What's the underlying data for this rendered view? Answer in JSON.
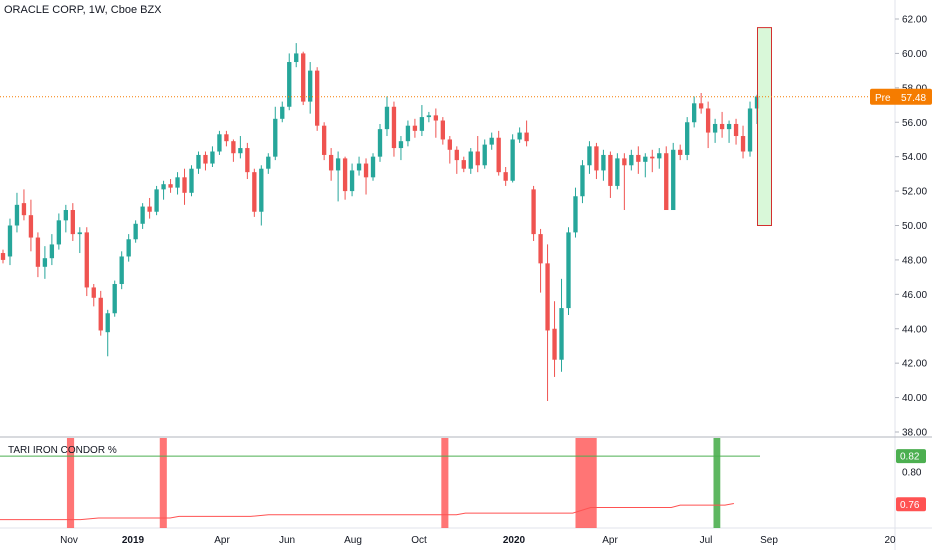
{
  "header": {
    "title": "ORACLE CORP, 1W, Cboe BZX"
  },
  "indicator": {
    "title": "TARI IRON CONDOR %"
  },
  "colors": {
    "up": "#26a69a",
    "down": "#ef5350",
    "highlight_fill": "#ccf5cc",
    "highlight_border": "#d32f2f",
    "ind_green": "#4caf50",
    "ind_red": "#ff5252"
  },
  "chart_data": [
    {
      "type": "candlestick",
      "title": "ORACLE CORP, 1W, Cboe BZX",
      "ylim": [
        37.5,
        62.5
      ],
      "y_ticks": [
        "38.00",
        "40.00",
        "42.00",
        "44.00",
        "46.00",
        "48.00",
        "50.00",
        "52.00",
        "54.00",
        "56.00",
        "58.00",
        "60.00",
        "62.00"
      ],
      "x_ticks": [
        "Nov",
        "2019",
        "Apr",
        "Jun",
        "Aug",
        "Oct",
        "2020",
        "Apr",
        "Jul",
        "Sep",
        "20"
      ],
      "last_price": {
        "label": "Pre",
        "value": "57.48",
        "y": 57.48
      },
      "highlight_box": {
        "low": 50.0,
        "high": 61.5
      },
      "candles": [
        [
          48.4,
          48.6,
          47.8,
          48.0
        ],
        [
          48.2,
          50.4,
          47.7,
          50.0
        ],
        [
          50.0,
          51.9,
          49.6,
          51.2
        ],
        [
          51.3,
          52.1,
          50.3,
          50.6
        ],
        [
          50.6,
          51.5,
          48.5,
          49.3
        ],
        [
          49.3,
          49.6,
          47.0,
          47.6
        ],
        [
          47.6,
          48.8,
          46.9,
          48.1
        ],
        [
          48.1,
          49.5,
          47.7,
          48.9
        ],
        [
          48.9,
          50.7,
          48.6,
          50.3
        ],
        [
          50.3,
          51.2,
          49.6,
          50.9
        ],
        [
          50.9,
          51.3,
          49.1,
          49.5
        ],
        [
          49.5,
          49.9,
          48.4,
          49.6
        ],
        [
          49.6,
          49.9,
          45.9,
          46.4
        ],
        [
          46.4,
          46.6,
          45.3,
          45.8
        ],
        [
          45.8,
          46.2,
          43.6,
          43.9
        ],
        [
          43.8,
          45.1,
          42.4,
          44.9
        ],
        [
          44.9,
          46.8,
          44.7,
          46.6
        ],
        [
          46.6,
          48.5,
          46.3,
          48.2
        ],
        [
          48.2,
          49.5,
          47.9,
          49.2
        ],
        [
          49.2,
          50.3,
          49.0,
          50.1
        ],
        [
          50.1,
          51.3,
          49.8,
          51.1
        ],
        [
          51.1,
          51.6,
          50.4,
          50.8
        ],
        [
          50.8,
          52.3,
          50.6,
          52.1
        ],
        [
          52.1,
          52.6,
          51.5,
          52.4
        ],
        [
          52.4,
          52.7,
          51.9,
          52.2
        ],
        [
          52.2,
          53.1,
          51.8,
          52.8
        ],
        [
          52.8,
          53.3,
          51.2,
          51.9
        ],
        [
          51.9,
          53.5,
          51.7,
          53.3
        ],
        [
          53.3,
          54.3,
          53.0,
          54.1
        ],
        [
          54.1,
          54.3,
          53.2,
          53.6
        ],
        [
          53.6,
          54.6,
          53.4,
          54.3
        ],
        [
          54.3,
          55.5,
          54.1,
          55.3
        ],
        [
          55.3,
          55.5,
          54.6,
          54.9
        ],
        [
          54.9,
          55.0,
          53.7,
          54.2
        ],
        [
          54.2,
          55.2,
          53.9,
          54.5
        ],
        [
          54.5,
          54.8,
          52.7,
          53.1
        ],
        [
          53.1,
          53.3,
          50.5,
          50.8
        ],
        [
          50.8,
          53.5,
          50.0,
          53.3
        ],
        [
          53.3,
          54.2,
          53.0,
          54.0
        ],
        [
          54.0,
          56.9,
          53.8,
          56.2
        ],
        [
          56.2,
          57.2,
          56.0,
          56.9
        ],
        [
          56.9,
          60.0,
          56.7,
          59.5
        ],
        [
          59.5,
          60.6,
          59.2,
          60.0
        ],
        [
          60.0,
          60.1,
          57.0,
          57.2
        ],
        [
          57.2,
          59.5,
          56.5,
          59.0
        ],
        [
          59.0,
          59.2,
          55.5,
          55.8
        ],
        [
          55.8,
          56.0,
          53.8,
          54.1
        ],
        [
          54.1,
          54.5,
          52.6,
          53.2
        ],
        [
          53.2,
          54.3,
          51.4,
          53.9
        ],
        [
          53.9,
          54.0,
          51.5,
          52.0
        ],
        [
          52.0,
          53.6,
          51.7,
          53.2
        ],
        [
          53.2,
          54.0,
          52.9,
          53.6
        ],
        [
          53.6,
          53.9,
          51.8,
          52.8
        ],
        [
          52.8,
          54.2,
          52.6,
          54.0
        ],
        [
          54.0,
          55.9,
          53.7,
          55.6
        ],
        [
          55.6,
          57.5,
          55.2,
          56.9
        ],
        [
          56.9,
          57.2,
          54.0,
          54.5
        ],
        [
          54.5,
          55.2,
          53.8,
          54.9
        ],
        [
          54.9,
          56.1,
          54.6,
          55.8
        ],
        [
          55.8,
          56.2,
          55.1,
          55.5
        ],
        [
          55.5,
          57.0,
          55.2,
          56.3
        ],
        [
          56.3,
          56.6,
          56.0,
          56.4
        ],
        [
          56.4,
          56.8,
          55.1,
          56.1
        ],
        [
          56.1,
          56.3,
          54.7,
          55.0
        ],
        [
          55.0,
          55.2,
          53.6,
          54.4
        ],
        [
          54.4,
          54.6,
          53.0,
          53.8
        ],
        [
          53.8,
          54.0,
          53.1,
          53.3
        ],
        [
          53.3,
          54.5,
          53.0,
          54.3
        ],
        [
          54.3,
          55.2,
          53.1,
          53.5
        ],
        [
          53.5,
          55.0,
          53.3,
          54.7
        ],
        [
          54.7,
          55.4,
          54.4,
          55.1
        ],
        [
          55.1,
          55.5,
          52.9,
          53.1
        ],
        [
          53.1,
          53.4,
          52.3,
          52.6
        ],
        [
          52.6,
          55.3,
          52.5,
          55.0
        ],
        [
          55.0,
          55.7,
          54.8,
          55.4
        ],
        [
          55.4,
          56.1,
          54.6,
          54.9
        ],
        [
          52.1,
          52.3,
          49.1,
          49.5
        ],
        [
          49.5,
          49.8,
          46.1,
          47.8
        ],
        [
          47.8,
          48.9,
          39.8,
          43.9
        ],
        [
          44.0,
          45.6,
          41.2,
          42.2
        ],
        [
          42.2,
          46.9,
          41.5,
          45.2
        ],
        [
          45.2,
          49.9,
          44.8,
          49.6
        ],
        [
          49.6,
          52.2,
          49.3,
          51.7
        ],
        [
          51.7,
          53.8,
          51.3,
          53.5
        ],
        [
          53.5,
          54.9,
          53.0,
          54.6
        ],
        [
          54.6,
          54.8,
          52.7,
          53.2
        ],
        [
          53.2,
          54.4,
          52.6,
          54.1
        ],
        [
          54.1,
          54.3,
          51.6,
          52.3
        ],
        [
          52.3,
          54.2,
          52.1,
          53.9
        ],
        [
          53.9,
          54.2,
          50.9,
          53.5
        ],
        [
          53.5,
          54.4,
          53.2,
          54.1
        ],
        [
          54.1,
          54.6,
          53.0,
          53.7
        ],
        [
          53.7,
          54.2,
          52.8,
          54.0
        ],
        [
          54.0,
          54.4,
          53.1,
          53.9
        ],
        [
          53.9,
          54.5,
          53.3,
          54.2
        ],
        [
          54.2,
          54.6,
          50.9,
          50.9
        ],
        [
          50.9,
          54.8,
          50.9,
          54.4
        ],
        [
          54.4,
          54.7,
          53.8,
          54.1
        ],
        [
          54.1,
          56.3,
          53.8,
          56.0
        ],
        [
          56.0,
          57.5,
          55.7,
          57.1
        ],
        [
          57.1,
          57.7,
          56.5,
          56.8
        ],
        [
          56.8,
          57.2,
          54.5,
          55.4
        ],
        [
          55.4,
          56.2,
          54.8,
          55.9
        ],
        [
          55.9,
          56.6,
          55.1,
          55.6
        ],
        [
          55.6,
          56.1,
          54.8,
          55.9
        ],
        [
          55.9,
          56.2,
          54.7,
          55.2
        ],
        [
          55.2,
          55.8,
          53.9,
          54.3
        ],
        [
          54.3,
          57.2,
          54.0,
          56.8
        ],
        [
          56.8,
          57.6,
          55.9,
          57.5
        ]
      ]
    },
    {
      "type": "line",
      "title": "TARI IRON CONDOR %",
      "ylim": [
        0.733,
        0.84
      ],
      "y_ticks": [
        "0.80"
      ],
      "markers": [
        {
          "label": "0.82",
          "y": 0.82,
          "color": "#4caf50"
        },
        {
          "label": "0.76",
          "y": 0.76,
          "color": "#ff5252"
        }
      ],
      "reference_line": 0.82,
      "series": [
        {
          "values": [
            [
              0,
              0.741
            ],
            [
              0.09,
              0.741
            ],
            [
              0.11,
              0.743
            ],
            [
              0.19,
              0.743
            ],
            [
              0.2,
              0.745
            ],
            [
              0.28,
              0.745
            ],
            [
              0.3,
              0.747
            ],
            [
              0.51,
              0.747
            ],
            [
              0.52,
              0.749
            ],
            [
              0.64,
              0.749
            ],
            [
              0.66,
              0.756
            ],
            [
              0.75,
              0.756
            ],
            [
              0.76,
              0.759
            ],
            [
              0.81,
              0.759
            ],
            [
              0.82,
              0.761
            ]
          ]
        }
      ],
      "bands": [
        {
          "from": 0.0748,
          "to": 0.0828,
          "color": "red"
        },
        {
          "from": 0.1785,
          "to": 0.1864,
          "color": "red"
        },
        {
          "from": 0.4931,
          "to": 0.501,
          "color": "red"
        },
        {
          "from": 0.643,
          "to": 0.6667,
          "color": "red"
        },
        {
          "from": 0.7972,
          "to": 0.8048,
          "color": "green"
        }
      ]
    }
  ]
}
